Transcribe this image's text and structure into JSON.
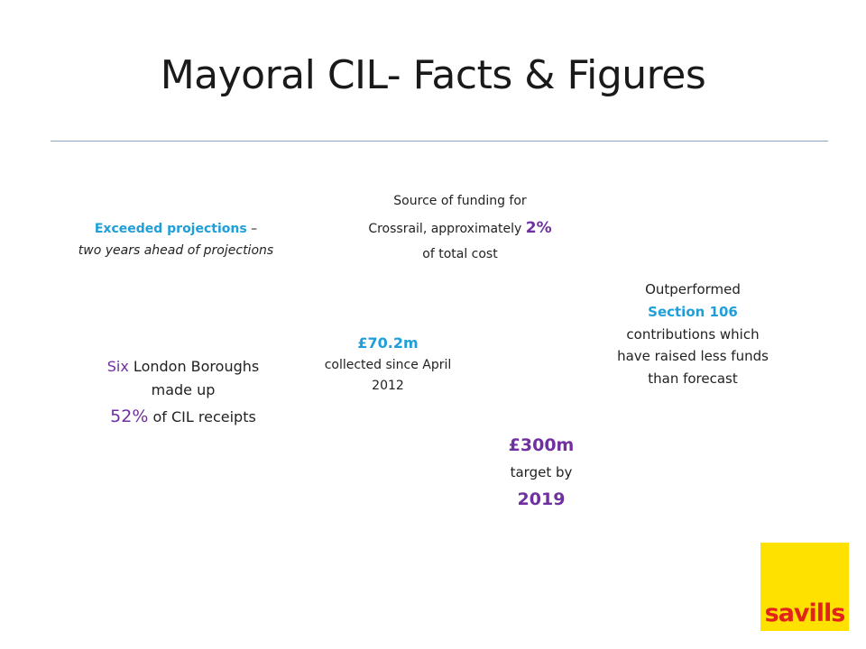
{
  "title": "Mayoral CIL- Facts & Figures",
  "exceeded": {
    "highlight": "Exceeded projections",
    "dash": " –",
    "rest": "two years ahead of projections"
  },
  "source": {
    "line1": "Source of funding for",
    "line2_pre": "Crossrail, approximately ",
    "pct": "2%",
    "line3": "of total cost"
  },
  "outperformed": {
    "pre": "Outperformed",
    "highlight": "Section 106",
    "post": "contributions which have raised less funds than forecast"
  },
  "collected": {
    "amount": "£70.2m",
    "text": "collected since April 2012"
  },
  "boroughs": {
    "six": "Six",
    "text1": " London Boroughs made up",
    "pct": "52%",
    "text2": " of CIL receipts"
  },
  "target": {
    "amount": "£300m",
    "text": "target by",
    "year": "2019"
  },
  "logo": {
    "text": "savills",
    "bg": "#ffe100",
    "fg": "#e2231a"
  },
  "colors": {
    "purple": "#7030a0",
    "blue": "#1f9ed8",
    "rule": "#8fa7c7"
  }
}
